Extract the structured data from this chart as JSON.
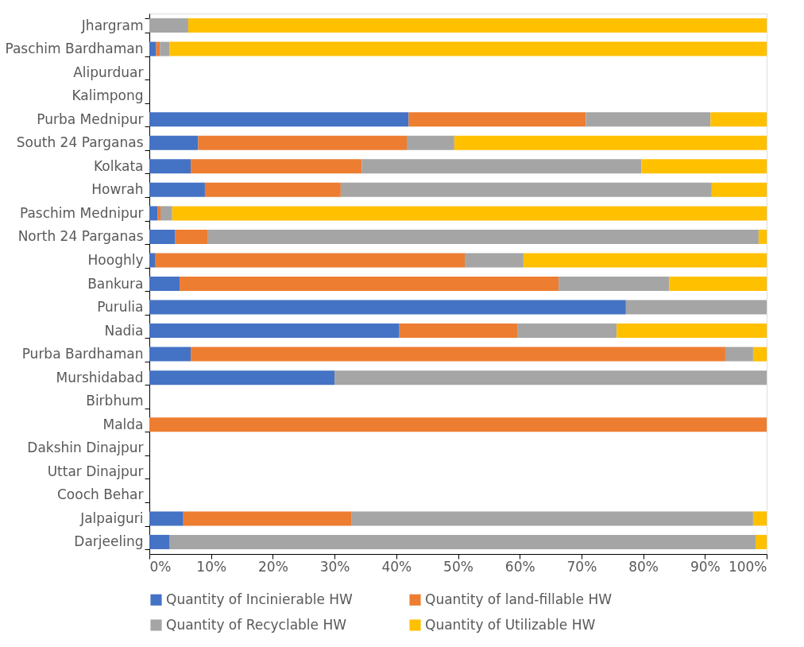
{
  "chart_data": {
    "type": "bar",
    "orientation": "horizontal",
    "stacked": true,
    "categories": [
      "Jhargram",
      "Paschim Bardhaman",
      "Alipurduar",
      "Kalimpong",
      "Purba Mednipur",
      "South 24 Parganas",
      "Kolkata",
      "Howrah",
      "Paschim Mednipur",
      "North 24 Parganas",
      "Hooghly",
      "Bankura",
      "Purulia",
      "Nadia",
      "Purba Bardhaman",
      "Murshidabad",
      "Birbhum",
      "Malda",
      "Dakshin Dinajpur",
      "Uttar Dinajpur",
      "Cooch Behar",
      "Jalpaiguri",
      "Darjeeling"
    ],
    "series": [
      {
        "name": "Quantity of Incinierable HW",
        "color": "#4472c4",
        "values": [
          null,
          1.1,
          null,
          null,
          42.0,
          7.9,
          6.7,
          9.0,
          1.3,
          4.2,
          0.9,
          4.9,
          77.2,
          40.5,
          6.7,
          30.0,
          null,
          null,
          null,
          null,
          null,
          5.5,
          3.3
        ]
      },
      {
        "name": "Quantity of land-fillable HW",
        "color": "#ed7d31",
        "values": [
          null,
          0.6,
          null,
          null,
          28.7,
          33.8,
          27.7,
          22.0,
          0.5,
          5.3,
          50.2,
          61.4,
          null,
          19.1,
          86.6,
          null,
          null,
          100,
          null,
          null,
          null,
          27.2,
          null
        ]
      },
      {
        "name": "Quantity of Recyclable HW",
        "color": "#a5a5a5",
        "values": [
          6.3,
          1.6,
          null,
          null,
          20.2,
          7.7,
          45.3,
          60.1,
          1.9,
          89.2,
          9.5,
          17.9,
          22.8,
          16.1,
          4.5,
          70.0,
          null,
          null,
          null,
          null,
          null,
          65.1,
          94.9
        ]
      },
      {
        "name": "Quantity of Utilizable HW",
        "color": "#ffc000",
        "values": [
          93.7,
          96.7,
          null,
          null,
          9.1,
          50.6,
          20.3,
          8.9,
          96.3,
          1.3,
          39.4,
          15.8,
          null,
          24.3,
          2.2,
          null,
          null,
          null,
          null,
          null,
          null,
          2.2,
          1.8
        ]
      }
    ],
    "xlim": [
      0,
      100
    ],
    "xticks": [
      {
        "value": 0,
        "label": "0%"
      },
      {
        "value": 10,
        "label": "10%"
      },
      {
        "value": 20,
        "label": "20%"
      },
      {
        "value": 30,
        "label": "30%"
      },
      {
        "value": 40,
        "label": "40%"
      },
      {
        "value": 50,
        "label": "50%"
      },
      {
        "value": 60,
        "label": "60%"
      },
      {
        "value": 70,
        "label": "70%"
      },
      {
        "value": 80,
        "label": "80%"
      },
      {
        "value": 90,
        "label": "90%"
      },
      {
        "value": 100,
        "label": "100%"
      }
    ],
    "grid": false,
    "legend": "bottom"
  }
}
